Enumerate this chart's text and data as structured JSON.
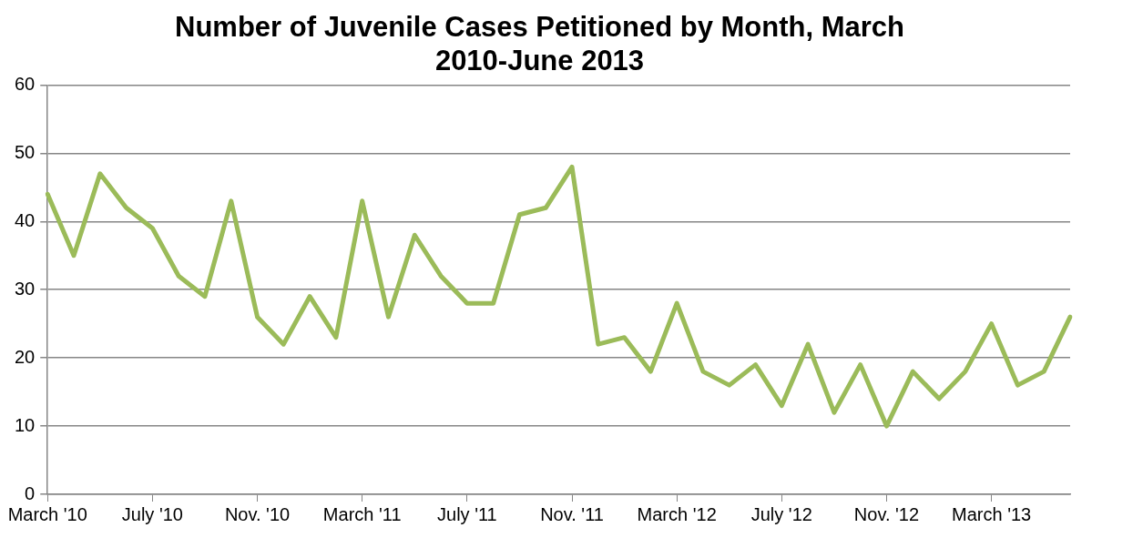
{
  "chart_data": {
    "type": "line",
    "title": "Number of Juvenile Cases Petitioned by Month, March 2010-June 2013",
    "categories": [
      "March '10",
      null,
      null,
      null,
      "July '10",
      null,
      null,
      null,
      "Nov. '10",
      null,
      null,
      null,
      "March '11",
      null,
      null,
      null,
      "July '11",
      null,
      null,
      null,
      "Nov. '11",
      null,
      null,
      null,
      "March '12",
      null,
      null,
      null,
      "July '12",
      null,
      null,
      null,
      "Nov. '12",
      null,
      null,
      null,
      "March '13",
      null,
      null,
      null
    ],
    "series": [
      {
        "color": "#9bbb59",
        "values": [
          44,
          35,
          47,
          42,
          39,
          32,
          29,
          43,
          26,
          22,
          29,
          23,
          43,
          26,
          38,
          32,
          28,
          28,
          41,
          42,
          48,
          22,
          23,
          18,
          28,
          18,
          16,
          19,
          13,
          22,
          12,
          19,
          10,
          18,
          14,
          18,
          25,
          16,
          18,
          26
        ]
      }
    ],
    "ylim": [
      0,
      60
    ],
    "yticks": [
      0,
      10,
      20,
      30,
      40,
      50,
      60
    ],
    "grid": "y",
    "marker": "none",
    "line_style": "solid",
    "legend": false
  }
}
